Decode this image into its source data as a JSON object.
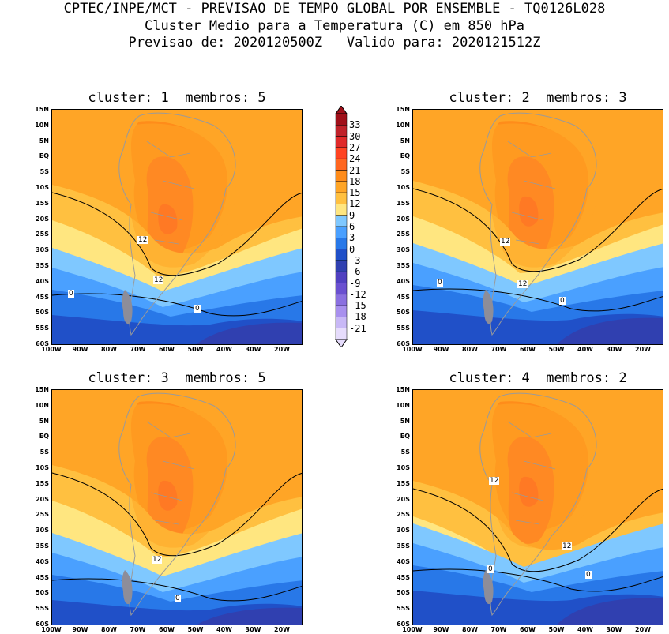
{
  "header": {
    "line1": "CPTEC/INPE/MCT - PREVISAO DE TEMPO GLOBAL POR ENSEMBLE - TQ0126L028",
    "line2": "Cluster Medio para a Temperatura (C) em 850 hPa",
    "line3": "Previsao de: 2020120500Z   Valido para: 2020121512Z"
  },
  "panels": [
    {
      "title": "cluster: 1  membros: 5",
      "labels": [
        "12",
        "12",
        "0",
        "0"
      ]
    },
    {
      "title": "cluster: 2  membros: 3",
      "labels": [
        "12",
        "12",
        "0",
        "0"
      ]
    },
    {
      "title": "cluster: 3  membros: 5",
      "labels": [
        "12",
        "0"
      ]
    },
    {
      "title": "cluster: 4  membros: 2",
      "labels": [
        "12",
        "12",
        "0",
        "0"
      ]
    }
  ],
  "lat_ticks": [
    "15N",
    "10N",
    "5N",
    "EQ",
    "5S",
    "10S",
    "15S",
    "20S",
    "25S",
    "30S",
    "35S",
    "40S",
    "45S",
    "50S",
    "55S",
    "60S"
  ],
  "lon_ticks": [
    "100W",
    "90W",
    "80W",
    "70W",
    "60W",
    "50W",
    "40W",
    "30W",
    "20W"
  ],
  "colorbar": {
    "levels": [
      "33",
      "30",
      "27",
      "24",
      "21",
      "18",
      "15",
      "12",
      "9",
      "6",
      "3",
      "0",
      "-3",
      "-6",
      "-9",
      "-12",
      "-15",
      "-18",
      "-21"
    ],
    "colors": [
      "#a0101a",
      "#c0222a",
      "#e02a2a",
      "#ff4422",
      "#ff6620",
      "#ff8c1a",
      "#ffa526",
      "#ffc040",
      "#ffe680",
      "#7fc8ff",
      "#4aa0ff",
      "#2878e8",
      "#2050c8",
      "#3040b0",
      "#5040c0",
      "#6a50d0",
      "#8a70e0",
      "#a890ee",
      "#c8b8f6",
      "#e6dcfc"
    ]
  }
}
